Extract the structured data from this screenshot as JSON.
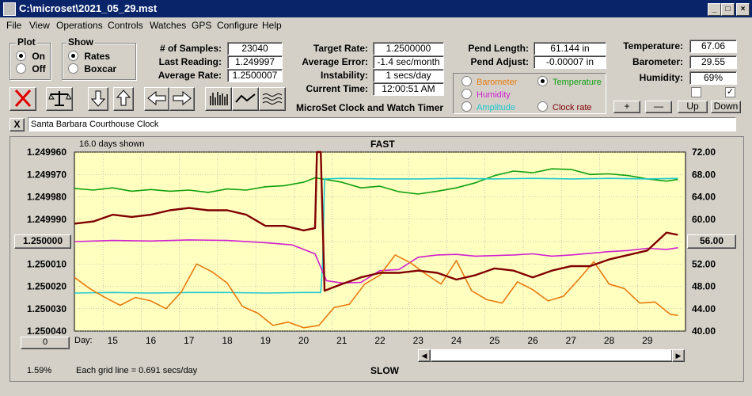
{
  "window": {
    "title": "C:\\microset\\2021_05_29.mst"
  },
  "menu": [
    "File",
    "View",
    "Operations",
    "Controls",
    "Watches",
    "GPS",
    "Configure",
    "Help"
  ],
  "plot_group": {
    "title": "Plot",
    "options": [
      {
        "label": "On",
        "selected": true
      },
      {
        "label": "Off",
        "selected": false
      }
    ]
  },
  "show_group": {
    "title": "Show",
    "options": [
      {
        "label": "Rates",
        "selected": true
      },
      {
        "label": "Boxcar",
        "selected": false
      }
    ]
  },
  "stats": {
    "samples_label": "# of Samples:",
    "samples": "23040",
    "last_label": "Last Reading:",
    "last": "1.249997",
    "avg_label": "Average Rate:",
    "avg": "1.2500007",
    "target_label": "Target Rate:",
    "target": "1.2500000",
    "avgerr_label": "Average Error:",
    "avgerr": "-1.4 sec/month",
    "instab_label": "Instability:",
    "instab": "1 secs/day",
    "time_label": "Current Time:",
    "time": "12:00:51 AM",
    "pendlen_label": "Pend Length:",
    "pendlen": "61.144 in",
    "pendadj_label": "Pend Adjust:",
    "pendadj": "-0.00007 in",
    "temp_label": "Temperature:",
    "temp": "67.06",
    "baro_label": "Barometer:",
    "baro": "29.55",
    "hum_label": "Humidity:",
    "hum": "69%"
  },
  "app_label": "MicroSet Clock and Watch Timer",
  "legend": {
    "options": [
      {
        "label": "Barometer",
        "color": "#e87a10",
        "selected": false
      },
      {
        "label": "Temperature",
        "color": "#10a010",
        "selected": true
      },
      {
        "label": "Humidity",
        "color": "#d020d0",
        "selected": false
      },
      {
        "label": "Clock rate",
        "color": "#800000",
        "selected": false
      },
      {
        "label": "Amplitude",
        "color": "#20c8d0",
        "selected": false
      }
    ]
  },
  "right_buttons": {
    "plus": "+",
    "minus": "—",
    "up": "Up",
    "down": "Down"
  },
  "clock_name": "Santa Barbara Courthouse Clock",
  "close_x": "X",
  "chart_header": {
    "days_shown": "16.0 days shown",
    "fast": "FAST",
    "slow": "SLOW"
  },
  "chart_footer": {
    "grid_note": "Each grid line = 0.691 secs/day",
    "percent": "1.59%",
    "day_label": "Day:",
    "left_button": "0"
  },
  "center_left_button": "1.250000",
  "center_right_button": "56.00",
  "chart_data": {
    "type": "line",
    "x_label": "Day:",
    "x_ticks": [
      15,
      16,
      17,
      18,
      19,
      20,
      21,
      22,
      23,
      24,
      25,
      26,
      27,
      28,
      29
    ],
    "xlim": [
      14.0,
      30.0
    ],
    "y_left_ticks": [
      "1.249960",
      "1.249970",
      "1.249980",
      "1.249990",
      "1.250000",
      "1.250010",
      "1.250020",
      "1.250030",
      "1.250040"
    ],
    "y_left_range": [
      1.24996,
      1.25004
    ],
    "y_left_inverted": true,
    "y_right_ticks": [
      "72.00",
      "68.00",
      "64.00",
      "60.00",
      "56.00",
      "52.00",
      "48.00",
      "44.00",
      "40.00"
    ],
    "y_right_range": [
      40,
      72
    ],
    "grid": true,
    "series": [
      {
        "name": "Temperature",
        "color": "#10a010",
        "axis": "right",
        "x": [
          14,
          14.5,
          15,
          15.5,
          16,
          16.5,
          17,
          17.5,
          18,
          18.5,
          19,
          19.5,
          20,
          20.3,
          20.5,
          21,
          21.5,
          22,
          22.5,
          23,
          23.5,
          24,
          24.5,
          25,
          25.5,
          26,
          26.5,
          27,
          27.5,
          28,
          28.5,
          29,
          29.5,
          29.8
        ],
        "y": [
          65.5,
          65.2,
          65.6,
          65.0,
          65.3,
          65.0,
          65.2,
          64.8,
          65.4,
          65.2,
          65.8,
          66.0,
          66.6,
          67.4,
          67.2,
          66.6,
          65.6,
          65.9,
          64.9,
          64.5,
          65.0,
          65.6,
          66.5,
          67.8,
          68.6,
          68.3,
          69.0,
          68.9,
          68.0,
          68.1,
          67.8,
          67.2,
          66.8,
          67.1
        ]
      },
      {
        "name": "Amplitude",
        "color": "#20c8d0",
        "axis": "right",
        "x": [
          14,
          15,
          16,
          17,
          18,
          19,
          20,
          20.45,
          20.5,
          20.55,
          21,
          22,
          23,
          24,
          25,
          26,
          27,
          28,
          29,
          29.8
        ],
        "y": [
          46.8,
          46.9,
          46.8,
          46.9,
          46.9,
          46.8,
          46.9,
          46.9,
          52,
          67.2,
          67.3,
          67.2,
          67.2,
          67.3,
          67.2,
          67.3,
          67.2,
          67.3,
          67.2,
          67.3
        ]
      },
      {
        "name": "Humidity",
        "color": "#d020d0",
        "axis": "right",
        "x": [
          14,
          15,
          16,
          17,
          18,
          19,
          19.7,
          20.3,
          20.6,
          21,
          21.5,
          22,
          22.5,
          23,
          23.5,
          24,
          24.5,
          25,
          25.5,
          26,
          26.5,
          27,
          27.5,
          28,
          28.5,
          29,
          29.5,
          29.8
        ],
        "y": [
          56.0,
          56.2,
          56.1,
          56.3,
          56.2,
          55.8,
          55.4,
          53.8,
          49.0,
          48.6,
          48.7,
          50.8,
          51.0,
          53.2,
          53.6,
          53.7,
          53.4,
          53.5,
          53.6,
          53.8,
          53.4,
          53.6,
          53.9,
          54.2,
          54.4,
          54.8,
          54.6,
          54.9
        ]
      },
      {
        "name": "Barometer",
        "color": "#e87a10",
        "axis": "right",
        "x": [
          14,
          14.4,
          14.8,
          15.2,
          15.6,
          16,
          16.4,
          16.8,
          17.2,
          17.6,
          18,
          18.4,
          18.8,
          19.2,
          19.6,
          20,
          20.4,
          20.8,
          21.2,
          21.6,
          22,
          22.4,
          22.8,
          23.2,
          23.6,
          24,
          24.4,
          24.8,
          25.2,
          25.6,
          26,
          26.4,
          26.8,
          27.2,
          27.6,
          28,
          28.4,
          28.8,
          29.2,
          29.6,
          29.8
        ],
        "y": [
          49.6,
          47.6,
          46.0,
          44.6,
          46.0,
          45.4,
          44.0,
          47.0,
          52.0,
          50.6,
          48.6,
          44.4,
          43.2,
          41.0,
          41.6,
          40.6,
          41.0,
          44.2,
          44.8,
          48.4,
          50.0,
          53.6,
          52.2,
          50.2,
          48.4,
          52.6,
          47.2,
          45.6,
          45.0,
          48.8,
          47.4,
          45.4,
          46.2,
          49.2,
          52.4,
          48.4,
          47.6,
          45.0,
          45.2,
          43.0,
          42.8
        ]
      },
      {
        "name": "Clock rate",
        "color": "#800000",
        "axis": "left",
        "x": [
          14,
          14.5,
          15,
          15.5,
          16,
          16.5,
          17,
          17.5,
          18,
          18.5,
          19,
          19.5,
          20,
          20.3,
          20.35,
          20.45,
          20.55,
          20.7,
          21,
          21.5,
          22,
          22.5,
          23,
          23.5,
          24,
          24.5,
          25,
          25.5,
          26,
          26.5,
          27,
          27.5,
          28,
          28.5,
          29,
          29.5,
          29.8
        ],
        "y": [
          1.249992,
          1.249991,
          1.249988,
          1.249989,
          1.249988,
          1.249986,
          1.249985,
          1.249986,
          1.249986,
          1.249988,
          1.249993,
          1.249993,
          1.249995,
          1.249994,
          1.24996,
          1.24996,
          1.250022,
          1.250021,
          1.250019,
          1.250016,
          1.250014,
          1.250014,
          1.250013,
          1.250014,
          1.250017,
          1.250015,
          1.250012,
          1.250013,
          1.250016,
          1.250013,
          1.250011,
          1.250011,
          1.250008,
          1.250006,
          1.250004,
          1.249996,
          1.249997
        ]
      }
    ]
  }
}
